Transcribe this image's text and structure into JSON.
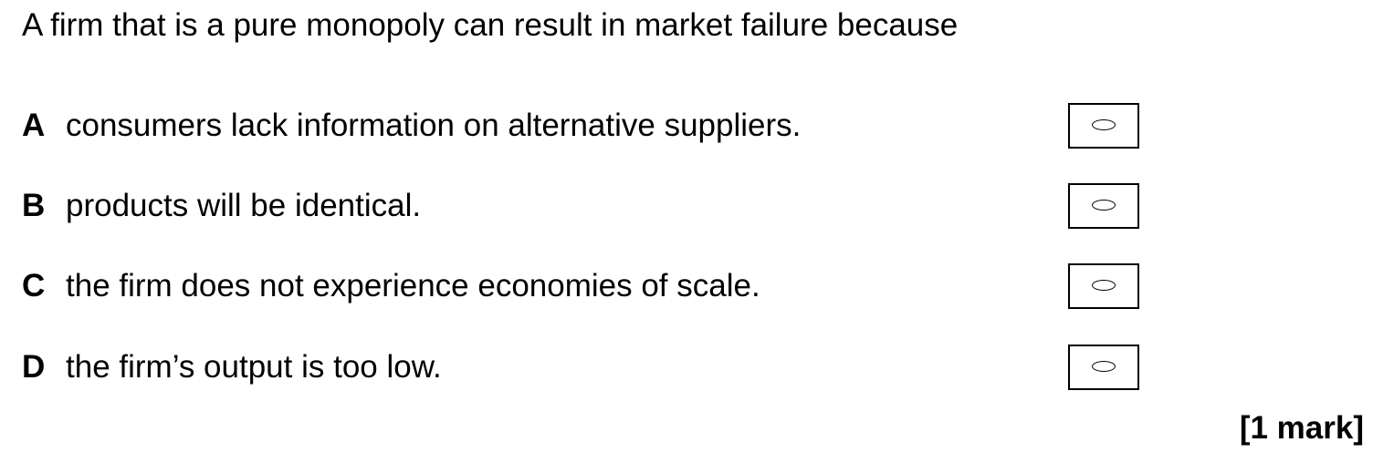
{
  "question": {
    "text": "A firm that is a pure monopoly can result in market failure because"
  },
  "options": [
    {
      "letter": "A",
      "text": "consumers lack information on alternative suppliers."
    },
    {
      "letter": "B",
      "text": "products will be identical."
    },
    {
      "letter": "C",
      "text": "the firm does not experience economies of scale."
    },
    {
      "letter": "D",
      "text": "the firm’s output is too low."
    }
  ],
  "marks": "[1 mark]",
  "icons": {
    "answer_oval": "oval-icon"
  }
}
